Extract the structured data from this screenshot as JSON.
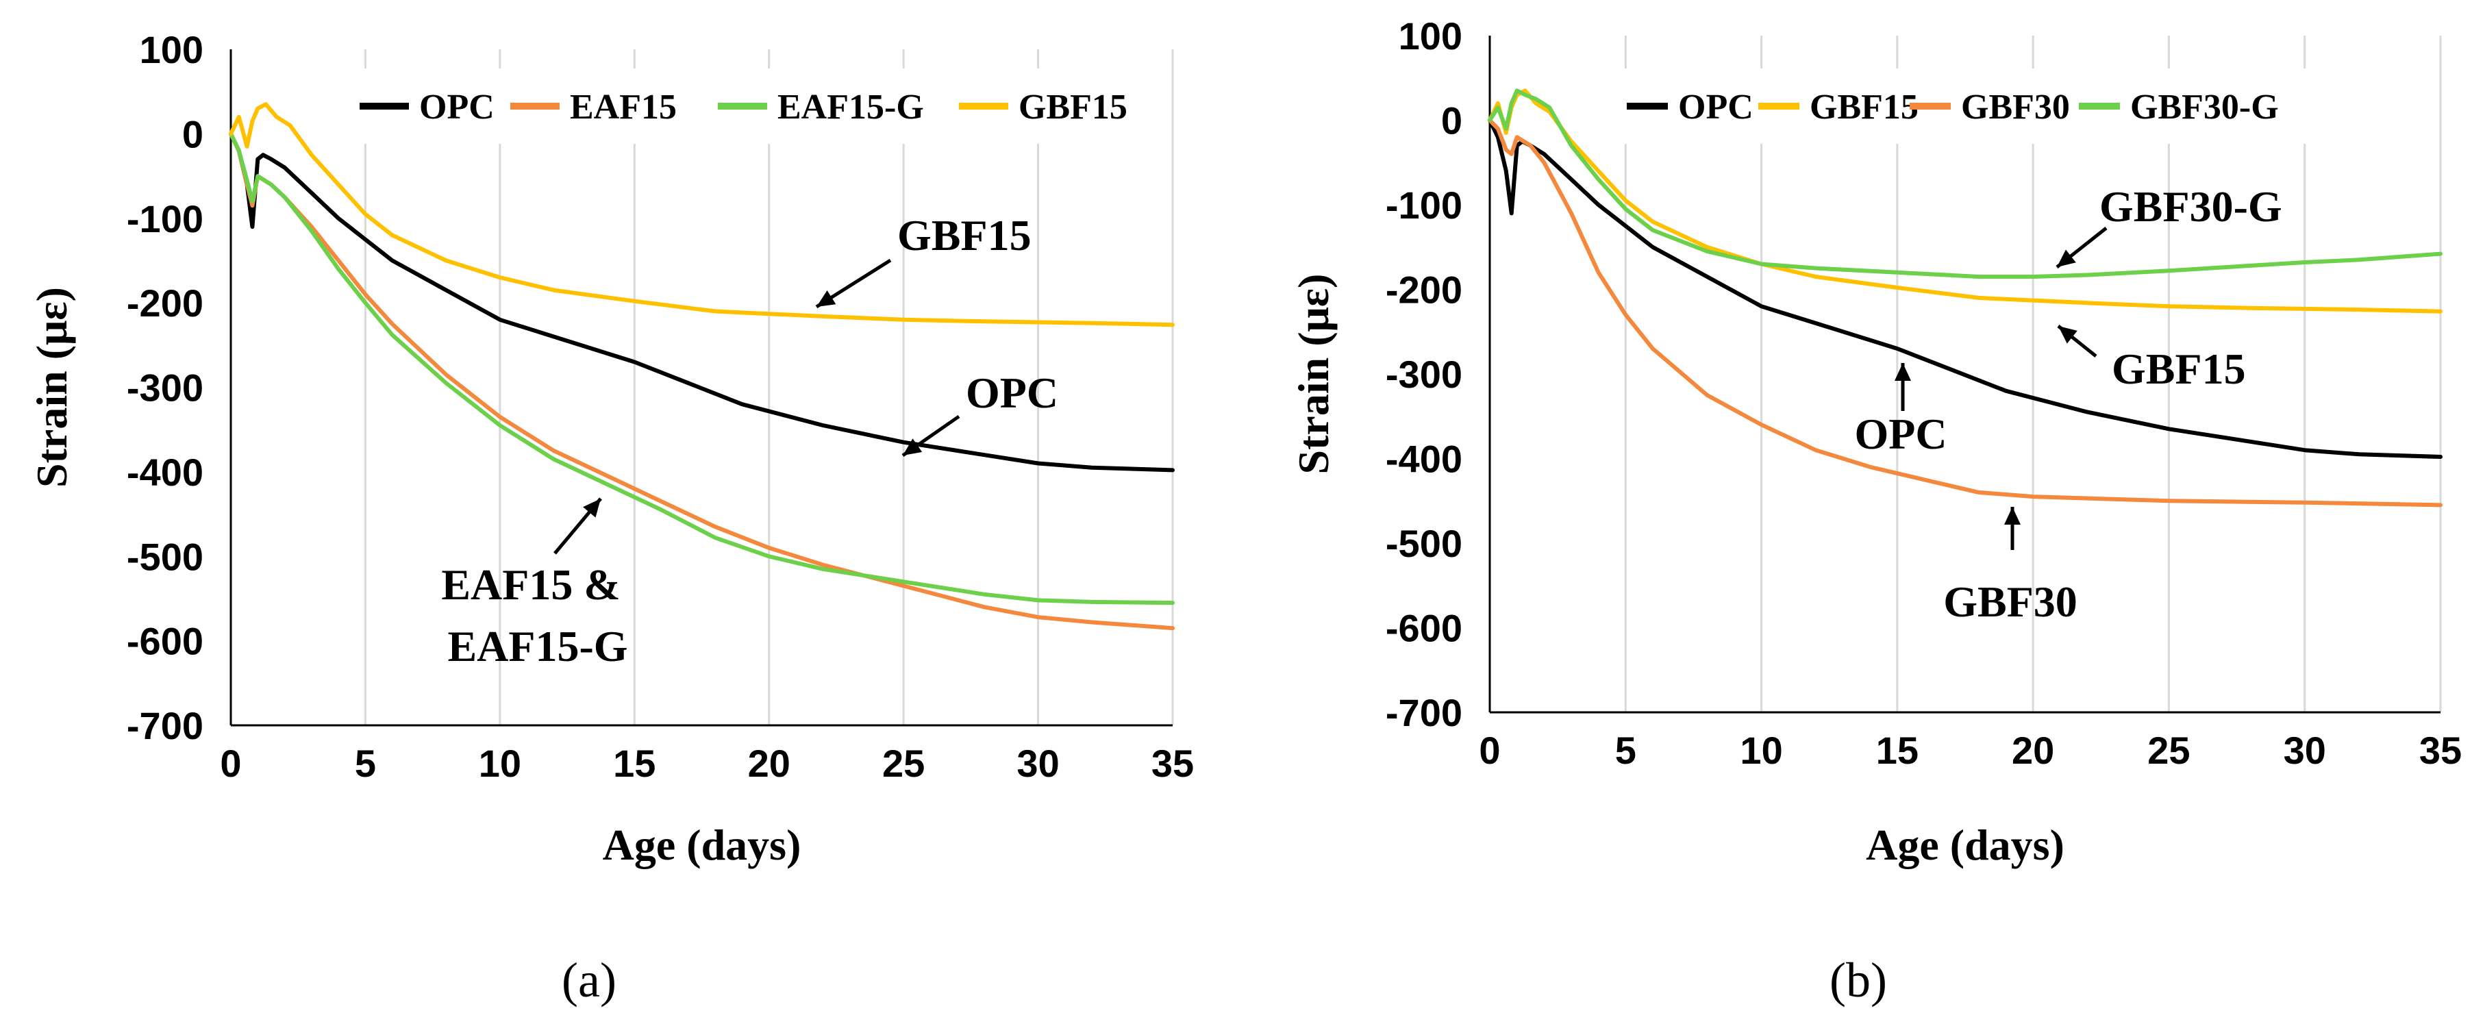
{
  "chart_data": [
    {
      "type": "line",
      "panel_label": "(a)",
      "title": "",
      "xlabel": "Age (days)",
      "ylabel": "Strain (με)",
      "xlim": [
        0,
        35
      ],
      "ylim": [
        -700,
        100
      ],
      "xticks": [
        0,
        5,
        10,
        15,
        20,
        25,
        30,
        35
      ],
      "yticks": [
        100,
        0,
        -100,
        -200,
        -300,
        -400,
        -500,
        -600,
        -700
      ],
      "xtick_labels": [
        "0",
        "5",
        "10",
        "15",
        "20",
        "25",
        "30",
        "35"
      ],
      "ytick_labels": [
        "100",
        "0",
        "-100",
        "-200",
        "-300",
        "-400",
        "-500",
        "-600",
        "-700"
      ],
      "grid": "vertical",
      "legend_position": "top",
      "series": [
        {
          "name": "OPC",
          "color": "#000000",
          "x": [
            0,
            0.3,
            0.6,
            0.8,
            1.0,
            1.2,
            1.5,
            2,
            3,
            4,
            5,
            6,
            8,
            10,
            12,
            15,
            17,
            19,
            22,
            25,
            28,
            30,
            32,
            35
          ],
          "y": [
            0,
            -20,
            -60,
            -110,
            -30,
            -25,
            -30,
            -40,
            -70,
            -100,
            -125,
            -150,
            -185,
            -220,
            -240,
            -270,
            -295,
            -320,
            -345,
            -365,
            -380,
            -390,
            -395,
            -398
          ]
        },
        {
          "name": "EAF15",
          "color": "#f4883c",
          "x": [
            0,
            0.3,
            0.6,
            0.8,
            1.0,
            1.5,
            2,
            3,
            4,
            5,
            6,
            8,
            10,
            12,
            14,
            16,
            18,
            20,
            22,
            25,
            28,
            30,
            32,
            35
          ],
          "y": [
            0,
            -20,
            -60,
            -85,
            -50,
            -60,
            -75,
            -110,
            -150,
            -190,
            -225,
            -285,
            -335,
            -375,
            -405,
            -435,
            -465,
            -490,
            -510,
            -535,
            -560,
            -572,
            -578,
            -585
          ]
        },
        {
          "name": "EAF15-G",
          "color": "#6cd04a",
          "x": [
            0,
            0.3,
            0.6,
            0.8,
            1.0,
            1.5,
            2,
            3,
            4,
            5,
            6,
            8,
            10,
            12,
            14,
            16,
            18,
            20,
            22,
            25,
            28,
            30,
            32,
            35
          ],
          "y": [
            0,
            -20,
            -55,
            -80,
            -50,
            -60,
            -75,
            -115,
            -160,
            -200,
            -238,
            -295,
            -345,
            -385,
            -415,
            -445,
            -478,
            -500,
            -515,
            -530,
            -545,
            -552,
            -554,
            -555
          ]
        },
        {
          "name": "GBF15",
          "color": "#ffc000",
          "x": [
            0,
            0.3,
            0.6,
            0.8,
            1.0,
            1.3,
            1.7,
            2.2,
            3,
            4,
            5,
            6,
            8,
            10,
            12,
            15,
            18,
            20,
            22,
            25,
            28,
            30,
            32,
            35
          ],
          "y": [
            0,
            20,
            -15,
            15,
            30,
            35,
            20,
            10,
            -25,
            -60,
            -95,
            -120,
            -150,
            -170,
            -185,
            -198,
            -210,
            -213,
            -216,
            -220,
            -222,
            -223,
            -224,
            -226
          ]
        }
      ],
      "annotations": [
        {
          "text": "GBF15"
        },
        {
          "text": "OPC"
        },
        {
          "lines": [
            "EAF15 &",
            "EAF15-G"
          ]
        }
      ]
    },
    {
      "type": "line",
      "panel_label": "(b)",
      "title": "",
      "xlabel": "Age (days)",
      "ylabel": "Strain (με)",
      "xlim": [
        0,
        35
      ],
      "ylim": [
        -700,
        100
      ],
      "xticks": [
        0,
        5,
        10,
        15,
        20,
        25,
        30,
        35
      ],
      "yticks": [
        100,
        0,
        -100,
        -200,
        -300,
        -400,
        -500,
        -600,
        -700
      ],
      "xtick_labels": [
        "0",
        "5",
        "10",
        "15",
        "20",
        "25",
        "30",
        "35"
      ],
      "ytick_labels": [
        "100",
        "0",
        "-100",
        "-200",
        "-300",
        "-400",
        "-500",
        "-600",
        "-700"
      ],
      "grid": "vertical",
      "legend_position": "top",
      "series": [
        {
          "name": "OPC",
          "color": "#000000",
          "x": [
            0,
            0.3,
            0.6,
            0.8,
            1.0,
            1.2,
            1.5,
            2,
            3,
            4,
            5,
            6,
            8,
            10,
            12,
            15,
            17,
            19,
            22,
            25,
            28,
            30,
            32,
            35
          ],
          "y": [
            0,
            -20,
            -60,
            -110,
            -30,
            -25,
            -30,
            -40,
            -70,
            -100,
            -125,
            -150,
            -185,
            -220,
            -240,
            -270,
            -295,
            -320,
            -345,
            -365,
            -380,
            -390,
            -395,
            -398
          ]
        },
        {
          "name": "GBF15",
          "color": "#ffc000",
          "x": [
            0,
            0.3,
            0.6,
            0.8,
            1.0,
            1.3,
            1.7,
            2.2,
            3,
            4,
            5,
            6,
            8,
            10,
            12,
            15,
            18,
            20,
            22,
            25,
            28,
            30,
            32,
            35
          ],
          "y": [
            0,
            20,
            -15,
            15,
            30,
            35,
            20,
            10,
            -25,
            -60,
            -95,
            -120,
            -150,
            -170,
            -185,
            -198,
            -210,
            -213,
            -216,
            -220,
            -222,
            -223,
            -224,
            -226
          ]
        },
        {
          "name": "GBF30",
          "color": "#f4883c",
          "x": [
            0,
            0.3,
            0.6,
            0.8,
            1.0,
            1.5,
            2,
            3,
            4,
            5,
            6,
            8,
            10,
            12,
            14,
            16,
            18,
            20,
            25,
            30,
            35
          ],
          "y": [
            0,
            -10,
            -35,
            -40,
            -20,
            -30,
            -50,
            -110,
            -180,
            -230,
            -270,
            -325,
            -360,
            -390,
            -410,
            -425,
            -440,
            -445,
            -450,
            -452,
            -455
          ]
        },
        {
          "name": "GBF30-G",
          "color": "#6cd04a",
          "x": [
            0,
            0.3,
            0.6,
            0.8,
            1.0,
            1.3,
            1.7,
            2.2,
            3,
            4,
            5,
            6,
            8,
            10,
            12,
            15,
            18,
            20,
            22,
            25,
            28,
            30,
            32,
            35
          ],
          "y": [
            0,
            15,
            -10,
            20,
            35,
            30,
            25,
            15,
            -30,
            -70,
            -105,
            -130,
            -155,
            -170,
            -175,
            -180,
            -185,
            -185,
            -183,
            -178,
            -172,
            -168,
            -165,
            -158
          ]
        }
      ],
      "annotations": [
        {
          "text": "GBF30-G"
        },
        {
          "text": "GBF15"
        },
        {
          "text": "OPC"
        },
        {
          "text": "GBF30"
        }
      ]
    }
  ]
}
